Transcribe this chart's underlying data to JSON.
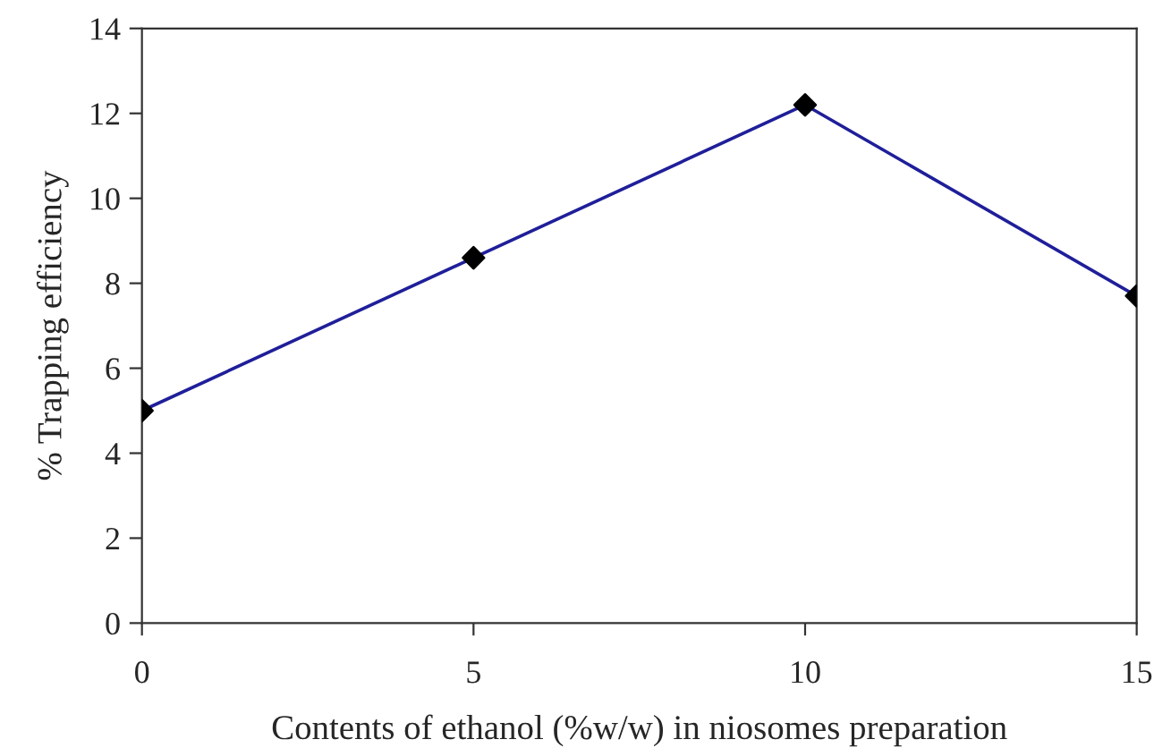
{
  "chart_data": {
    "type": "line",
    "xlabel": "Contents of ethanol (%w/w) in niosomes preparation",
    "ylabel": "% Trapping efficiency",
    "x": [
      0,
      5,
      10,
      15
    ],
    "series": [
      {
        "color": "#1f1f9a",
        "values": [
          5.0,
          8.6,
          12.2,
          7.7
        ]
      }
    ],
    "xlim": [
      0,
      15
    ],
    "xticks": [
      0,
      5,
      10,
      15
    ],
    "ylim": [
      0,
      14
    ],
    "yticks": [
      0,
      2,
      4,
      6,
      8,
      10,
      12,
      14
    ],
    "marker": "diamond",
    "line_style": "solid",
    "grid": false,
    "legend": false
  }
}
